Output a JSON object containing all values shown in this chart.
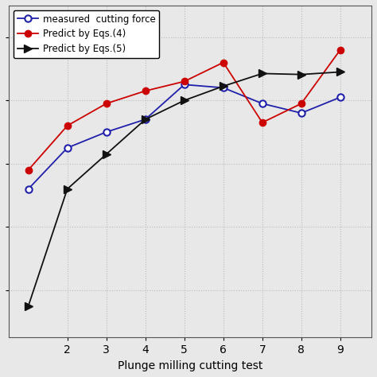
{
  "x": [
    1,
    2,
    3,
    4,
    5,
    6,
    7,
    8,
    9
  ],
  "measured": [
    3.2,
    4.5,
    5.0,
    5.4,
    6.5,
    6.4,
    5.9,
    5.6,
    6.1
  ],
  "predict4": [
    3.8,
    5.2,
    5.9,
    6.3,
    6.6,
    7.2,
    5.3,
    5.9,
    7.6
  ],
  "predict5": [
    -0.5,
    3.2,
    4.3,
    5.4,
    6.0,
    6.45,
    6.85,
    6.82,
    6.9
  ],
  "xlabel": "Plunge milling cutting test",
  "legend_measured": "measured  cutting force",
  "legend_predict4": "Predict by Eqs.(4)",
  "legend_predict5": "Predict by Eqs.(5)",
  "color_measured": "#2020aa",
  "color_predict4": "#cc0000",
  "color_predict5": "#111111",
  "background_color": "#e8e8e8",
  "plot_bg_color": "#e8e8e8",
  "grid_color": "#bbbbbb",
  "xlim": [
    0.5,
    9.8
  ],
  "ylim": [
    -1.5,
    9.0
  ],
  "xticks": [
    2,
    3,
    4,
    5,
    6,
    7,
    8,
    9
  ],
  "yticks": [],
  "figsize": [
    4.74,
    4.74
  ],
  "dpi": 100
}
